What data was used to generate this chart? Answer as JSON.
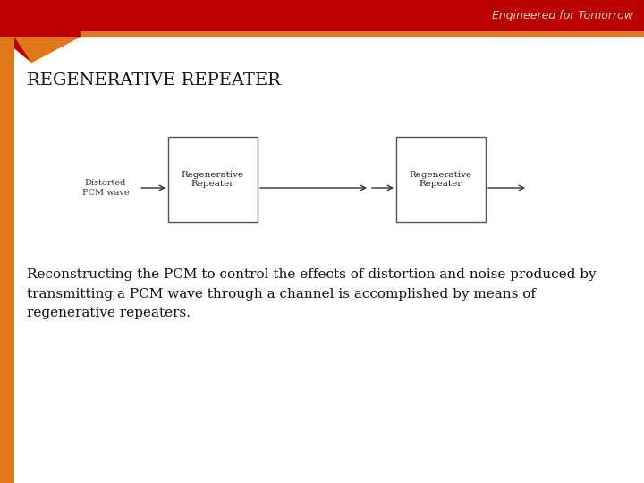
{
  "title": "REGENERATIVE REPEATER",
  "subtitle": "Engineered for Tomorrow",
  "body_text": "Reconstructing the PCM to control the effects of distortion and noise produced by\ntransmitting a PCM wave through a channel is accomplished by means of\nregenerative repeaters.",
  "box1_label": "Regenerative\nRepeater",
  "box2_label": "Regenerative\nRepeater",
  "input_label": "Distorted\nPCM wave",
  "bg_color": "#ffffff",
  "header_dark_red": "#bb0000",
  "header_orange": "#e07718",
  "header_text_color": "#f0d0c0",
  "title_color": "#111111",
  "body_color": "#111111",
  "box_edge_color": "#555555",
  "arrow_color": "#333333",
  "left_bar_color": "#e07718",
  "title_fontsize": 14,
  "body_fontsize": 11,
  "subtitle_fontsize": 9,
  "diagram_fontsize": 7.5,
  "input_fontsize": 7
}
